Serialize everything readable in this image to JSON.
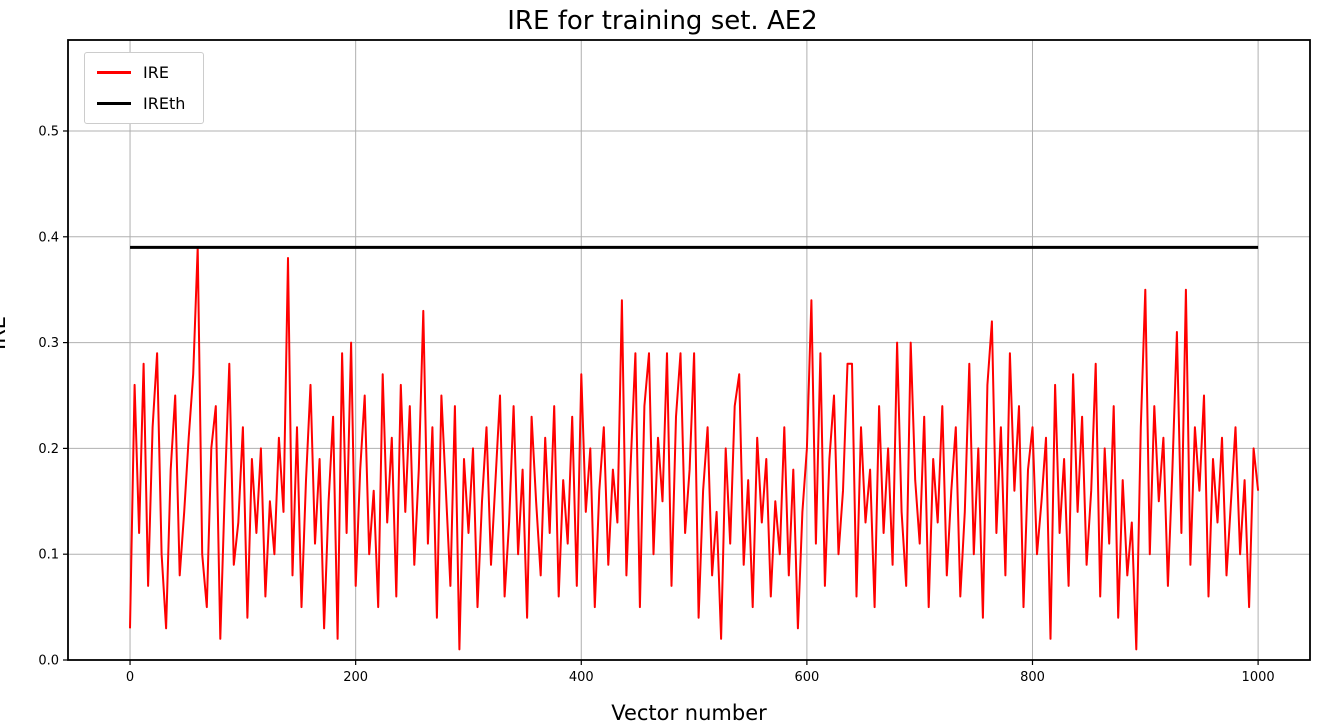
{
  "chart_data": {
    "type": "line",
    "title": "IRE for training set. AE2",
    "xlabel": "Vector number",
    "ylabel": "IRE",
    "xlim": [
      -55,
      1046
    ],
    "ylim": [
      0,
      0.586
    ],
    "xticks": [
      0,
      200,
      400,
      600,
      800,
      1000
    ],
    "yticks": [
      0.0,
      0.1,
      0.2,
      0.3,
      0.4,
      0.5
    ],
    "grid": true,
    "grid_color": "#b0b0b0",
    "legend": {
      "position": "upper-left",
      "entries": [
        {
          "label": "IRE",
          "color": "#ff0000"
        },
        {
          "label": "IREth",
          "color": "#000000"
        }
      ]
    },
    "series": [
      {
        "name": "IRE",
        "kind": "line",
        "color": "#ff0000",
        "line_width": 2,
        "x_start": 0,
        "x_step": 4,
        "values": [
          0.03,
          0.26,
          0.12,
          0.28,
          0.07,
          0.22,
          0.29,
          0.1,
          0.03,
          0.18,
          0.25,
          0.08,
          0.14,
          0.21,
          0.27,
          0.39,
          0.1,
          0.05,
          0.2,
          0.24,
          0.02,
          0.16,
          0.28,
          0.09,
          0.13,
          0.22,
          0.04,
          0.19,
          0.12,
          0.2,
          0.06,
          0.15,
          0.1,
          0.21,
          0.14,
          0.38,
          0.08,
          0.22,
          0.05,
          0.17,
          0.26,
          0.11,
          0.19,
          0.03,
          0.15,
          0.23,
          0.02,
          0.29,
          0.12,
          0.3,
          0.07,
          0.18,
          0.25,
          0.1,
          0.16,
          0.05,
          0.27,
          0.13,
          0.21,
          0.06,
          0.26,
          0.14,
          0.24,
          0.09,
          0.18,
          0.33,
          0.11,
          0.22,
          0.04,
          0.25,
          0.16,
          0.07,
          0.24,
          0.01,
          0.19,
          0.12,
          0.2,
          0.05,
          0.15,
          0.22,
          0.09,
          0.17,
          0.25,
          0.06,
          0.13,
          0.24,
          0.1,
          0.18,
          0.04,
          0.23,
          0.15,
          0.08,
          0.21,
          0.12,
          0.24,
          0.06,
          0.17,
          0.11,
          0.23,
          0.07,
          0.27,
          0.14,
          0.2,
          0.05,
          0.16,
          0.22,
          0.09,
          0.18,
          0.13,
          0.34,
          0.08,
          0.19,
          0.29,
          0.05,
          0.24,
          0.29,
          0.1,
          0.21,
          0.15,
          0.29,
          0.07,
          0.23,
          0.29,
          0.12,
          0.18,
          0.29,
          0.04,
          0.16,
          0.22,
          0.08,
          0.14,
          0.02,
          0.2,
          0.11,
          0.24,
          0.27,
          0.09,
          0.17,
          0.05,
          0.21,
          0.13,
          0.19,
          0.06,
          0.15,
          0.1,
          0.22,
          0.08,
          0.18,
          0.03,
          0.14,
          0.2,
          0.34,
          0.11,
          0.29,
          0.07,
          0.19,
          0.25,
          0.1,
          0.16,
          0.28,
          0.28,
          0.06,
          0.22,
          0.13,
          0.18,
          0.05,
          0.24,
          0.12,
          0.2,
          0.09,
          0.3,
          0.14,
          0.07,
          0.3,
          0.17,
          0.11,
          0.23,
          0.05,
          0.19,
          0.13,
          0.24,
          0.08,
          0.16,
          0.22,
          0.06,
          0.14,
          0.28,
          0.1,
          0.2,
          0.04,
          0.26,
          0.32,
          0.12,
          0.22,
          0.08,
          0.29,
          0.16,
          0.24,
          0.05,
          0.18,
          0.22,
          0.1,
          0.15,
          0.21,
          0.02,
          0.26,
          0.12,
          0.19,
          0.07,
          0.27,
          0.14,
          0.23,
          0.09,
          0.16,
          0.28,
          0.06,
          0.2,
          0.11,
          0.24,
          0.04,
          0.17,
          0.08,
          0.13,
          0.01,
          0.22,
          0.35,
          0.1,
          0.24,
          0.15,
          0.21,
          0.07,
          0.18,
          0.31,
          0.12,
          0.35,
          0.09,
          0.22,
          0.16,
          0.25,
          0.06,
          0.19,
          0.13,
          0.21,
          0.08,
          0.15,
          0.22,
          0.1,
          0.17,
          0.05,
          0.2,
          0.16
        ]
      },
      {
        "name": "IREth",
        "kind": "hline",
        "color": "#000000",
        "line_width": 3,
        "y": 0.39,
        "x_range": [
          0,
          1000
        ]
      }
    ]
  }
}
